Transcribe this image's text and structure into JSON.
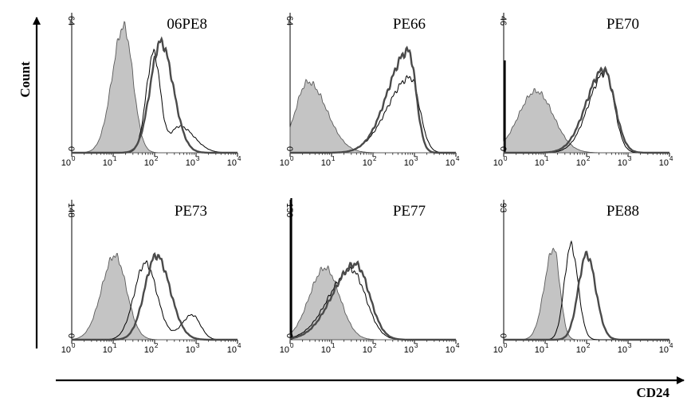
{
  "figure": {
    "ylabel": "Count",
    "xlabel": "CD24"
  },
  "chart_data": [
    {
      "type": "area",
      "title": "06PE8",
      "x_scale": "log",
      "xlim": [
        1,
        10000
      ],
      "ylim": [
        0,
        64
      ],
      "x_tick_labels": [
        {
          "base": "10",
          "exp": "0"
        },
        {
          "base": "10",
          "exp": "1"
        },
        {
          "base": "10",
          "exp": "2"
        },
        {
          "base": "10",
          "exp": "3"
        },
        {
          "base": "10",
          "exp": "4"
        }
      ],
      "y_tick_labels": [
        "0",
        "64"
      ],
      "series": [
        {
          "style": "filled-gray",
          "peaks": [
            {
              "x": 18,
              "h": 57,
              "sl": 0.28,
              "sr": 0.22
            }
          ],
          "spike": 0
        },
        {
          "style": "thin",
          "peaks": [
            {
              "x": 95,
              "h": 45,
              "sl": 0.18,
              "sr": 0.16
            },
            {
              "x": 400,
              "h": 12,
              "sl": 0.22,
              "sr": 0.35
            }
          ],
          "spike": 0
        },
        {
          "style": "thick",
          "peaks": [
            {
              "x": 140,
              "h": 50,
              "sl": 0.25,
              "sr": 0.3
            }
          ],
          "spike": 0
        }
      ]
    },
    {
      "type": "area",
      "title": "PE66",
      "x_scale": "log",
      "xlim": [
        1,
        10000
      ],
      "ylim": [
        0,
        64
      ],
      "x_tick_labels": [
        {
          "base": "10",
          "exp": "0"
        },
        {
          "base": "10",
          "exp": "1"
        },
        {
          "base": "10",
          "exp": "2"
        },
        {
          "base": "10",
          "exp": "3"
        },
        {
          "base": "10",
          "exp": "4"
        }
      ],
      "y_tick_labels": [
        "0",
        "64"
      ],
      "series": [
        {
          "style": "filled-gray",
          "peaks": [
            {
              "x": 2.7,
              "h": 32,
              "sl": 0.3,
              "sr": 0.45
            }
          ],
          "spike": 0
        },
        {
          "style": "thin",
          "peaks": [
            {
              "x": 800,
              "h": 34,
              "sl": 0.55,
              "sr": 0.22
            }
          ],
          "spike": 0
        },
        {
          "style": "thick",
          "peaks": [
            {
              "x": 720,
              "h": 46,
              "sl": 0.5,
              "sr": 0.18
            }
          ],
          "spike": 0
        }
      ]
    },
    {
      "type": "area",
      "title": "PE70",
      "x_scale": "log",
      "xlim": [
        1,
        10000
      ],
      "ylim": [
        0,
        46
      ],
      "x_tick_labels": [
        {
          "base": "10",
          "exp": "0"
        },
        {
          "base": "10",
          "exp": "1"
        },
        {
          "base": "10",
          "exp": "2"
        },
        {
          "base": "10",
          "exp": "3"
        },
        {
          "base": "10",
          "exp": "4"
        }
      ],
      "y_tick_labels": [
        "0",
        "46"
      ],
      "series": [
        {
          "style": "filled-gray",
          "peaks": [
            {
              "x": 6,
              "h": 20,
              "sl": 0.42,
              "sr": 0.42
            }
          ],
          "spike": 30
        },
        {
          "style": "thin",
          "peaks": [
            {
              "x": 280,
              "h": 26,
              "sl": 0.4,
              "sr": 0.22
            }
          ],
          "spike": 0
        },
        {
          "style": "thick",
          "peaks": [
            {
              "x": 260,
              "h": 27,
              "sl": 0.42,
              "sr": 0.26
            }
          ],
          "spike": 0
        }
      ]
    },
    {
      "type": "area",
      "title": "PE73",
      "x_scale": "log",
      "xlim": [
        1,
        10000
      ],
      "ylim": [
        0,
        148
      ],
      "x_tick_labels": [
        {
          "base": "10",
          "exp": "0"
        },
        {
          "base": "10",
          "exp": "1"
        },
        {
          "base": "10",
          "exp": "2"
        },
        {
          "base": "10",
          "exp": "3"
        },
        {
          "base": "10",
          "exp": "4"
        }
      ],
      "y_tick_labels": [
        "0",
        "148"
      ],
      "series": [
        {
          "style": "filled-gray",
          "peaks": [
            {
              "x": 11,
              "h": 88,
              "sl": 0.32,
              "sr": 0.28
            }
          ],
          "spike": 0
        },
        {
          "style": "thin",
          "peaks": [
            {
              "x": 60,
              "h": 80,
              "sl": 0.27,
              "sr": 0.28
            },
            {
              "x": 800,
              "h": 26,
              "sl": 0.25,
              "sr": 0.2
            }
          ],
          "spike": 0
        },
        {
          "style": "thick",
          "peaks": [
            {
              "x": 110,
              "h": 88,
              "sl": 0.28,
              "sr": 0.33
            }
          ],
          "spike": 0
        }
      ]
    },
    {
      "type": "area",
      "title": "PE77",
      "x_scale": "log",
      "xlim": [
        1,
        10000
      ],
      "ylim": [
        0,
        150
      ],
      "x_tick_labels": [
        {
          "base": "10",
          "exp": "0"
        },
        {
          "base": "10",
          "exp": "1"
        },
        {
          "base": "10",
          "exp": "2"
        },
        {
          "base": "10",
          "exp": "3"
        },
        {
          "base": "10",
          "exp": "4"
        }
      ],
      "y_tick_labels": [
        "0",
        "150"
      ],
      "series": [
        {
          "style": "filled-gray",
          "peaks": [
            {
              "x": 7,
              "h": 76,
              "sl": 0.38,
              "sr": 0.35
            }
          ],
          "spike": 150
        },
        {
          "style": "thin",
          "peaks": [
            {
              "x": 30,
              "h": 74,
              "sl": 0.55,
              "sr": 0.35
            }
          ],
          "spike": 0
        },
        {
          "style": "thick",
          "peaks": [
            {
              "x": 38,
              "h": 80,
              "sl": 0.55,
              "sr": 0.33
            }
          ],
          "spike": 0
        }
      ]
    },
    {
      "type": "area",
      "title": "PE88",
      "x_scale": "log",
      "xlim": [
        1,
        10000
      ],
      "ylim": [
        0,
        93
      ],
      "x_tick_labels": [
        {
          "base": "10",
          "exp": "0"
        },
        {
          "base": "10",
          "exp": "1"
        },
        {
          "base": "10",
          "exp": "2"
        },
        {
          "base": "10",
          "exp": "3"
        },
        {
          "base": "10",
          "exp": "4"
        }
      ],
      "y_tick_labels": [
        "0",
        "93"
      ],
      "series": [
        {
          "style": "filled-gray",
          "peaks": [
            {
              "x": 16,
              "h": 60,
              "sl": 0.22,
              "sr": 0.15
            }
          ],
          "spike": 0
        },
        {
          "style": "thin",
          "peaks": [
            {
              "x": 42,
              "h": 62,
              "sl": 0.16,
              "sr": 0.17
            }
          ],
          "spike": 0
        },
        {
          "style": "thick",
          "peaks": [
            {
              "x": 100,
              "h": 56,
              "sl": 0.2,
              "sr": 0.22
            }
          ],
          "spike": 0
        }
      ]
    }
  ]
}
